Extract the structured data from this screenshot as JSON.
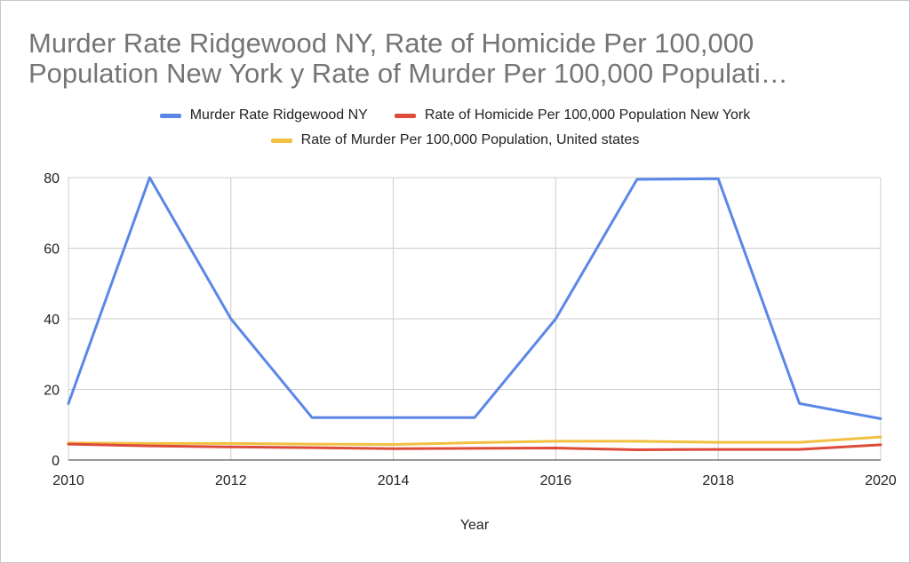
{
  "chart_data": {
    "type": "line",
    "title_line1": "Murder Rate Ridgewood NY, Rate of Homicide Per 100,000",
    "title_line2": "Population New York y Rate of Murder Per 100,000 Populati…",
    "xlabel": "Year",
    "ylabel": "",
    "x": [
      2010,
      2011,
      2012,
      2013,
      2014,
      2015,
      2016,
      2017,
      2018,
      2019,
      2020
    ],
    "xlim": [
      2010,
      2020
    ],
    "ylim": [
      0,
      80
    ],
    "xticks": [
      "2010",
      "2012",
      "2014",
      "2016",
      "2018",
      "2020"
    ],
    "yticks": [
      "0",
      "20",
      "40",
      "60",
      "80"
    ],
    "grid": true,
    "legend_position": "top",
    "series": [
      {
        "name": "Murder Rate Ridgewood NY",
        "color": "#5b87e8",
        "values": [
          16,
          80,
          40,
          12,
          12,
          12,
          40,
          79.5,
          79.7,
          16,
          11.7
        ]
      },
      {
        "name": "Rate of Homicide Per 100,000 Population New York",
        "color": "#dd4b39",
        "values": [
          4.5,
          4.0,
          3.7,
          3.5,
          3.2,
          3.3,
          3.4,
          2.9,
          3.0,
          3.0,
          4.3
        ]
      },
      {
        "name": "Rate of Murder Per 100,000 Population, United states",
        "color": "#f1c040",
        "values": [
          4.8,
          4.7,
          4.7,
          4.5,
          4.4,
          4.9,
          5.3,
          5.3,
          5.0,
          5.0,
          6.5
        ]
      }
    ]
  }
}
